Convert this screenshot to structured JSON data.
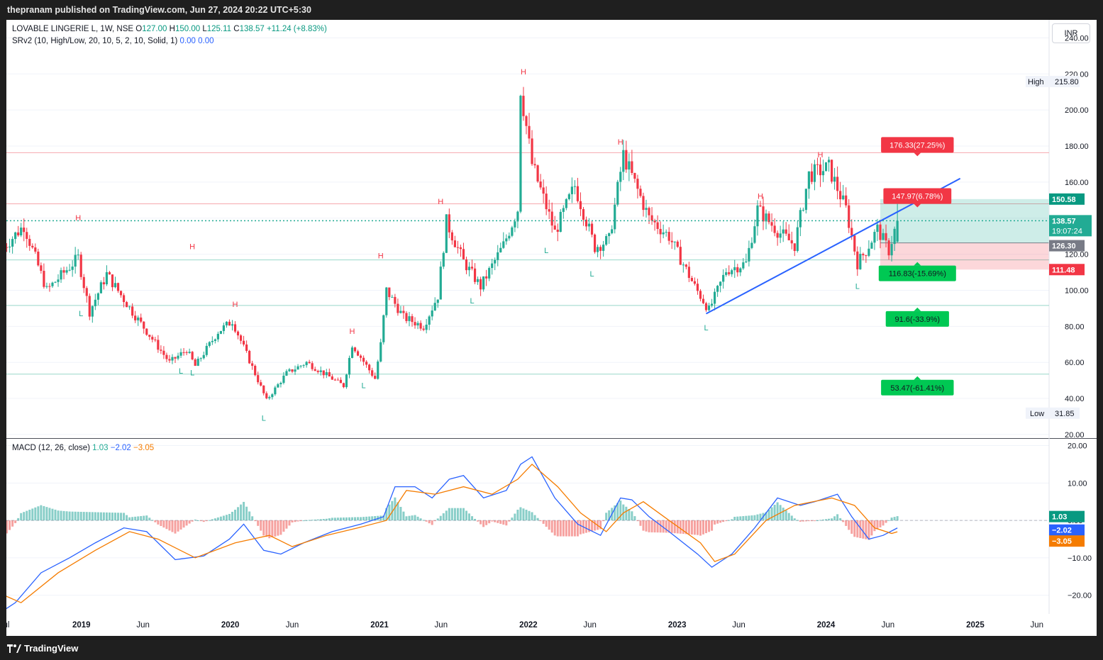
{
  "header": {
    "publish_text": "thepranam published on TradingView.com, Jun 27, 2024 20:22 UTC+5:30"
  },
  "footer": {
    "brand": "TradingView"
  },
  "currency_button": "INR",
  "colors": {
    "up": "#22ab94",
    "down": "#f23645",
    "trend": "#2962ff",
    "macd": "#2962ff",
    "signal": "#f57c00"
  },
  "legend": {
    "symbol": "LOVABLE LINGERIE L, 1W, NSE",
    "o_label": "O",
    "o_value": "127.00",
    "h_label": "H",
    "h_value": "150.00",
    "l_label": "L",
    "l_value": "125.11",
    "c_label": "C",
    "c_value": "138.57",
    "change": "+11.24 (+8.83%)",
    "indicator": "SRv2 (10, High/Low, 20, 10, 5, 2, 10, Solid, 1)",
    "ind_v1": "0.00",
    "ind_v2": "0.00"
  },
  "macd_legend": {
    "name": "MACD (12, 26, close)",
    "hist": "1.03",
    "macd": "−2.02",
    "signal": "−3.05"
  },
  "chart_data": [
    {
      "type": "candlestick",
      "title": "LOVABLE LINGERIE L, 1W, NSE",
      "ylim": [
        18,
        250
      ],
      "y_ticks": [
        "240.00",
        "220.00",
        "200.00",
        "180.00",
        "160.00",
        "140.00",
        "120.00",
        "100.00",
        "80.00",
        "60.00",
        "40.00",
        "20.00"
      ],
      "x_ticks": [
        "ul",
        "2019",
        "Jun",
        "2020",
        "Jun",
        "2021",
        "Jun",
        "2022",
        "Jun",
        "2023",
        "Jun",
        "2024",
        "Jun",
        "2025",
        "Jun"
      ],
      "x_tick_dates": [
        "2018-07-01",
        "2019-01-01",
        "2019-06-01",
        "2020-01-01",
        "2020-06-01",
        "2021-01-01",
        "2021-06-01",
        "2022-01-01",
        "2022-06-01",
        "2023-01-01",
        "2023-06-01",
        "2024-01-01",
        "2024-06-01",
        "2025-01-01",
        "2025-06-01"
      ],
      "price_path": [
        [
          "2018-06-25",
          124
        ],
        [
          "2018-08-13",
          136
        ],
        [
          "2018-10-08",
          100
        ],
        [
          "2018-12-24",
          118
        ],
        [
          "2019-01-21",
          88
        ],
        [
          "2019-03-04",
          109
        ],
        [
          "2019-05-06",
          88
        ],
        [
          "2019-08-05",
          60
        ],
        [
          "2019-09-16",
          67
        ],
        [
          "2019-10-07",
          58
        ],
        [
          "2019-12-02",
          77
        ],
        [
          "2020-01-06",
          83
        ],
        [
          "2020-03-30",
          39
        ],
        [
          "2020-05-18",
          54
        ],
        [
          "2020-07-06",
          60
        ],
        [
          "2020-10-05",
          47
        ],
        [
          "2020-10-26",
          70
        ],
        [
          "2020-12-21",
          51
        ],
        [
          "2021-01-04",
          70
        ],
        [
          "2021-01-18",
          100
        ],
        [
          "2021-03-01",
          85
        ],
        [
          "2021-04-19",
          80
        ],
        [
          "2021-05-24",
          97
        ],
        [
          "2021-06-14",
          138
        ],
        [
          "2021-07-26",
          116
        ],
        [
          "2021-09-06",
          102
        ],
        [
          "2021-11-01",
          125
        ],
        [
          "2021-12-06",
          145
        ],
        [
          "2021-12-13",
          212
        ],
        [
          "2022-01-10",
          170
        ],
        [
          "2022-03-07",
          132
        ],
        [
          "2022-04-25",
          158
        ],
        [
          "2022-06-13",
          124
        ],
        [
          "2022-07-18",
          128
        ],
        [
          "2022-08-22",
          175
        ],
        [
          "2022-10-24",
          140
        ],
        [
          "2022-12-12",
          130
        ],
        [
          "2023-02-13",
          102
        ],
        [
          "2023-03-20",
          89
        ],
        [
          "2023-05-01",
          111
        ],
        [
          "2023-06-19",
          115
        ],
        [
          "2023-07-17",
          145
        ],
        [
          "2023-09-04",
          133
        ],
        [
          "2023-10-16",
          125
        ],
        [
          "2023-11-20",
          164
        ],
        [
          "2024-01-08",
          168
        ],
        [
          "2024-02-19",
          145
        ],
        [
          "2024-03-18",
          115
        ],
        [
          "2024-04-08",
          122
        ],
        [
          "2024-05-06",
          134
        ],
        [
          "2024-06-03",
          122
        ],
        [
          "2024-06-24",
          138.57
        ]
      ],
      "pivot_highs": [
        [
          "2018-12-24",
          136
        ],
        [
          "2019-09-30",
          120
        ],
        [
          "2020-01-13",
          88
        ],
        [
          "2020-10-26",
          73
        ],
        [
          "2021-01-04",
          115
        ],
        [
          "2021-05-31",
          145
        ],
        [
          "2021-12-20",
          217
        ],
        [
          "2022-08-15",
          178
        ],
        [
          "2023-07-24",
          148
        ],
        [
          "2023-12-18",
          171
        ]
      ],
      "pivot_lows": [
        [
          "2018-12-31",
          92
        ],
        [
          "2019-09-02",
          60
        ],
        [
          "2019-09-30",
          59
        ],
        [
          "2020-03-23",
          34
        ],
        [
          "2020-11-23",
          52
        ],
        [
          "2021-08-16",
          99
        ],
        [
          "2022-02-14",
          127
        ],
        [
          "2022-06-06",
          114
        ],
        [
          "2023-03-13",
          84
        ],
        [
          "2024-03-18",
          107
        ]
      ],
      "sr_levels": [
        {
          "value": 176.33,
          "kind": "resistance"
        },
        {
          "value": 147.97,
          "kind": "resistance"
        },
        {
          "value": 116.83,
          "kind": "support"
        },
        {
          "value": 91.6,
          "kind": "support"
        },
        {
          "value": 53.47,
          "kind": "support"
        }
      ],
      "level_labels": [
        "176.33(27.25%)",
        "147.97(6.78%)",
        "116.83(-15.69%)",
        "91.6(-33.9%)",
        "53.47(-61.41%)"
      ],
      "pivot_label_high": "H",
      "pivot_label_low": "L",
      "trendline": {
        "start": [
          "2023-03-13",
          87
        ],
        "end": [
          "2024-11-25",
          162
        ]
      },
      "position_box": {
        "entry": 126.3,
        "target": 150.58,
        "stop": 111.48,
        "start": "2024-05-13",
        "end": "2025-06-30"
      },
      "last_price": 138.57,
      "countdown": "19:07:24",
      "high_label": "High",
      "high_value": "215.80",
      "low_label": "Low",
      "low_value": "31.85",
      "price_tags": {
        "target": "150.58",
        "last": "138.57",
        "entry": "126.30",
        "stop": "111.48"
      }
    },
    {
      "type": "line",
      "title": "MACD (12, 26, close)",
      "ylim": [
        -25,
        22
      ],
      "y_ticks": [
        "20.00",
        "10.00",
        "0.00",
        "−10.00",
        "−20.00"
      ],
      "macd_path": [
        [
          "2018-06-25",
          -24
        ],
        [
          "2018-07-23",
          -22
        ],
        [
          "2018-09-24",
          -14
        ],
        [
          "2018-12-03",
          -10
        ],
        [
          "2019-02-04",
          -6
        ],
        [
          "2019-04-15",
          -2
        ],
        [
          "2019-06-10",
          -3
        ],
        [
          "2019-08-19",
          -10.5
        ],
        [
          "2019-10-28",
          -9.5
        ],
        [
          "2019-12-30",
          -5
        ],
        [
          "2020-02-03",
          -1
        ],
        [
          "2020-03-23",
          -8
        ],
        [
          "2020-05-04",
          -9
        ],
        [
          "2020-06-29",
          -6
        ],
        [
          "2020-09-07",
          -3
        ],
        [
          "2020-11-16",
          -1
        ],
        [
          "2021-01-11",
          1
        ],
        [
          "2021-02-08",
          9
        ],
        [
          "2021-03-29",
          9
        ],
        [
          "2021-05-10",
          6
        ],
        [
          "2021-06-21",
          11
        ],
        [
          "2021-07-26",
          12
        ],
        [
          "2021-09-13",
          6
        ],
        [
          "2021-11-08",
          8
        ],
        [
          "2021-12-13",
          15
        ],
        [
          "2022-01-10",
          17
        ],
        [
          "2022-03-07",
          6
        ],
        [
          "2022-05-02",
          -1
        ],
        [
          "2022-06-27",
          -4
        ],
        [
          "2022-08-15",
          6
        ],
        [
          "2022-09-12",
          5.5
        ],
        [
          "2022-10-24",
          1
        ],
        [
          "2022-12-12",
          -3
        ],
        [
          "2023-02-20",
          -9
        ],
        [
          "2023-03-27",
          -12.5
        ],
        [
          "2023-05-15",
          -9
        ],
        [
          "2023-07-10",
          -2
        ],
        [
          "2023-09-04",
          6
        ],
        [
          "2023-10-30",
          4
        ],
        [
          "2023-12-04",
          5
        ],
        [
          "2024-01-29",
          7
        ],
        [
          "2024-03-04",
          1
        ],
        [
          "2024-04-15",
          -5
        ],
        [
          "2024-05-20",
          -4
        ],
        [
          "2024-06-24",
          -2.02
        ]
      ],
      "signal_path": [
        [
          "2018-06-25",
          -20
        ],
        [
          "2018-08-06",
          -22
        ],
        [
          "2018-11-05",
          -14
        ],
        [
          "2019-02-04",
          -8
        ],
        [
          "2019-04-29",
          -3
        ],
        [
          "2019-07-08",
          -5
        ],
        [
          "2019-10-07",
          -10
        ],
        [
          "2020-01-13",
          -6
        ],
        [
          "2020-04-06",
          -4
        ],
        [
          "2020-06-01",
          -7
        ],
        [
          "2020-08-24",
          -4
        ],
        [
          "2020-11-09",
          -2
        ],
        [
          "2021-01-18",
          0
        ],
        [
          "2021-03-08",
          8
        ],
        [
          "2021-05-17",
          7
        ],
        [
          "2021-07-26",
          9
        ],
        [
          "2021-10-04",
          7
        ],
        [
          "2021-12-06",
          11
        ],
        [
          "2022-01-10",
          15
        ],
        [
          "2022-03-14",
          9
        ],
        [
          "2022-05-09",
          2
        ],
        [
          "2022-07-11",
          -3
        ],
        [
          "2022-08-22",
          2
        ],
        [
          "2022-10-10",
          5
        ],
        [
          "2022-12-12",
          0
        ],
        [
          "2023-02-27",
          -6
        ],
        [
          "2023-04-03",
          -11
        ],
        [
          "2023-05-22",
          -9
        ],
        [
          "2023-08-07",
          0
        ],
        [
          "2023-10-16",
          4
        ],
        [
          "2024-01-15",
          6
        ],
        [
          "2024-03-11",
          4
        ],
        [
          "2024-04-29",
          -2
        ],
        [
          "2024-06-10",
          -3.5
        ],
        [
          "2024-06-24",
          -3.05
        ]
      ],
      "histogram_last": 1.03,
      "tags": {
        "hist": "1.03",
        "macd": "−2.02",
        "signal": "−3.05"
      }
    }
  ]
}
